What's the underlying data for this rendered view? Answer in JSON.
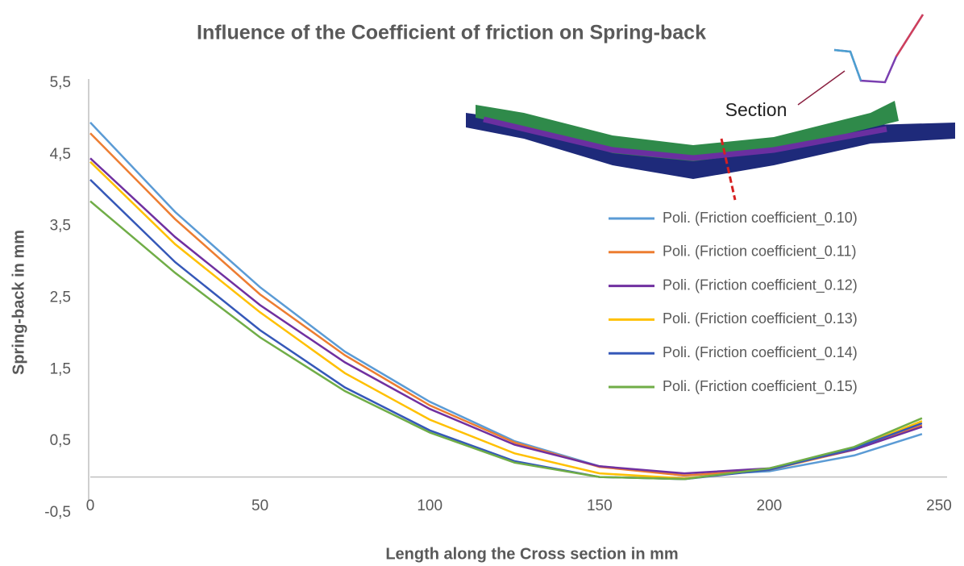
{
  "chart_data": {
    "type": "line",
    "title": "Influence of the Coefficient of friction on Spring-back",
    "x_label": "Length along the Cross section in mm",
    "y_label": "Spring-back in mm",
    "annotation": "Section",
    "x": [
      0,
      25,
      50,
      75,
      100,
      125,
      150,
      175,
      200,
      225,
      245
    ],
    "series": [
      {
        "name": "Poli. (Friction coefficient_0.10)",
        "color": "#5b9bd5",
        "values": [
          4.95,
          3.7,
          2.65,
          1.75,
          1.05,
          0.5,
          0.15,
          0.02,
          0.08,
          0.3,
          0.6
        ]
      },
      {
        "name": "Poli. (Friction coefficient_0.11)",
        "color": "#ed7d31",
        "values": [
          4.8,
          3.6,
          2.55,
          1.7,
          1.0,
          0.48,
          0.14,
          0.02,
          0.1,
          0.38,
          0.72
        ]
      },
      {
        "name": "Poli. (Friction coefficient_0.12)",
        "color": "#7030a0",
        "values": [
          4.45,
          3.35,
          2.4,
          1.6,
          0.95,
          0.45,
          0.15,
          0.05,
          0.12,
          0.38,
          0.7
        ]
      },
      {
        "name": "Poli. (Friction coefficient_0.13)",
        "color": "#ffc000",
        "values": [
          4.4,
          3.25,
          2.3,
          1.45,
          0.8,
          0.33,
          0.05,
          -0.02,
          0.1,
          0.4,
          0.78
        ]
      },
      {
        "name": "Poli. (Friction coefficient_0.14)",
        "color": "#3558b8",
        "values": [
          4.15,
          3.0,
          2.05,
          1.25,
          0.65,
          0.22,
          0.0,
          -0.03,
          0.1,
          0.4,
          0.75
        ]
      },
      {
        "name": "Poli. (Friction coefficient_0.15)",
        "color": "#70ad47",
        "values": [
          3.85,
          2.85,
          1.95,
          1.2,
          0.62,
          0.2,
          0.0,
          -0.03,
          0.12,
          0.42,
          0.82
        ]
      }
    ],
    "xlim": [
      0,
      250
    ],
    "xticks": [
      0,
      50,
      100,
      150,
      200,
      250
    ],
    "ylim": [
      -0.5,
      5.5
    ],
    "yticks": [
      {
        "value": -0.5,
        "label": "-0,5"
      },
      {
        "value": 0.5,
        "label": "0,5"
      },
      {
        "value": 1.5,
        "label": "1,5"
      },
      {
        "value": 2.5,
        "label": "2,5"
      },
      {
        "value": 3.5,
        "label": "3,5"
      },
      {
        "value": 4.5,
        "label": "4,5"
      },
      {
        "value": 5.5,
        "label": "5,5"
      }
    ],
    "legend": "right",
    "grid": false
  }
}
